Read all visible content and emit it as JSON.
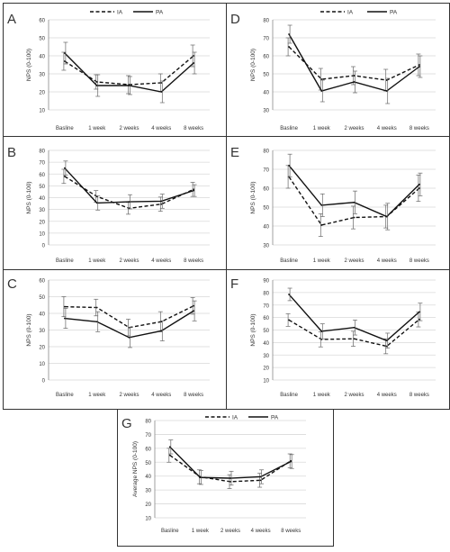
{
  "chart_data": [
    {
      "panel_letter": "A",
      "type": "line",
      "legend": [
        "IA",
        "PA"
      ],
      "ylabel": "NPS (0-100)",
      "categories": [
        "Basline",
        "1 week",
        "2 weeks",
        "4 weeks",
        "8 weeks"
      ],
      "yticks": [
        10,
        20,
        30,
        40,
        50,
        60
      ],
      "ylim": [
        10,
        60
      ],
      "series": [
        {
          "name": "IA",
          "style": "dashed",
          "values": [
            37,
            25.5,
            24,
            25,
            40
          ],
          "errors": [
            5,
            4,
            5,
            5,
            6
          ]
        },
        {
          "name": "PA",
          "style": "solid",
          "values": [
            41.5,
            23.5,
            23.5,
            20,
            36
          ],
          "errors": [
            6,
            6,
            5,
            6,
            6
          ]
        }
      ]
    },
    {
      "panel_letter": "D",
      "type": "line",
      "legend": [
        "IA",
        "PA"
      ],
      "ylabel": "NPS (0-100)",
      "categories": [
        "Basline",
        "1 week",
        "2 weeks",
        "4 weeks",
        "8 weeks"
      ],
      "yticks": [
        30,
        40,
        50,
        60,
        70,
        80
      ],
      "ylim": [
        30,
        80
      ],
      "series": [
        {
          "name": "IA",
          "style": "dashed",
          "values": [
            65,
            47,
            49,
            46.5,
            55
          ],
          "errors": [
            5,
            6,
            5,
            6,
            6
          ]
        },
        {
          "name": "PA",
          "style": "solid",
          "values": [
            72,
            40.5,
            45.5,
            40.5,
            54
          ],
          "errors": [
            5,
            6,
            6,
            7,
            6
          ]
        }
      ]
    },
    {
      "panel_letter": "B",
      "type": "line",
      "legend": [],
      "ylabel": "NPS (0-100)",
      "categories": [
        "Basline",
        "1 week",
        "2 weeks",
        "4 weeks",
        "8 weeks"
      ],
      "yticks": [
        0,
        10,
        20,
        30,
        40,
        50,
        60,
        70,
        80
      ],
      "ylim": [
        0,
        80
      ],
      "series": [
        {
          "name": "IA",
          "style": "dashed",
          "values": [
            58,
            41,
            31,
            34.5,
            47
          ],
          "errors": [
            6,
            5,
            5,
            6,
            6
          ]
        },
        {
          "name": "PA",
          "style": "solid",
          "values": [
            65,
            35.5,
            36.5,
            37,
            46
          ],
          "errors": [
            6,
            6,
            6,
            6,
            5
          ]
        }
      ]
    },
    {
      "panel_letter": "E",
      "type": "line",
      "legend": [],
      "ylabel": "NPS (0-100)",
      "categories": [
        "Basline",
        "1 week",
        "2 weeks",
        "4 weeks",
        "8 weeks"
      ],
      "yticks": [
        30,
        40,
        50,
        60,
        70,
        80
      ],
      "ylim": [
        30,
        80
      ],
      "series": [
        {
          "name": "IA",
          "style": "dashed",
          "values": [
            66,
            40.5,
            44.5,
            45,
            60
          ],
          "errors": [
            6,
            6,
            6,
            6,
            7
          ]
        },
        {
          "name": "PA",
          "style": "solid",
          "values": [
            72,
            51,
            52.5,
            45,
            62
          ],
          "errors": [
            6,
            6,
            6,
            7,
            6
          ]
        }
      ]
    },
    {
      "panel_letter": "C",
      "type": "line",
      "legend": [],
      "ylabel": "NPS (0-100)",
      "categories": [
        "Basline",
        "1 week",
        "2 weeks",
        "4 weeks",
        "8 weeks"
      ],
      "yticks": [
        0,
        10,
        20,
        30,
        40,
        50,
        60
      ],
      "ylim": [
        0,
        60
      ],
      "series": [
        {
          "name": "IA",
          "style": "dashed",
          "values": [
            44,
            43.5,
            31.5,
            35,
            44.5
          ],
          "errors": [
            6,
            5,
            5,
            6,
            5
          ]
        },
        {
          "name": "PA",
          "style": "solid",
          "values": [
            37,
            35,
            25.5,
            29.5,
            41.5
          ],
          "errors": [
            6,
            6,
            6,
            6,
            6
          ]
        }
      ]
    },
    {
      "panel_letter": "F",
      "type": "line",
      "legend": [],
      "ylabel": "NPS (0-100)",
      "categories": [
        "Basline",
        "1 week",
        "2 weeks",
        "4 weeks",
        "8 weeks"
      ],
      "yticks": [
        10,
        20,
        30,
        40,
        50,
        60,
        70,
        80,
        90
      ],
      "ylim": [
        10,
        90
      ],
      "series": [
        {
          "name": "IA",
          "style": "dashed",
          "values": [
            58,
            42.5,
            43,
            37,
            58.5
          ],
          "errors": [
            5,
            6,
            6,
            6,
            6
          ]
        },
        {
          "name": "PA",
          "style": "solid",
          "values": [
            78.5,
            49,
            52,
            41.5,
            64.5
          ],
          "errors": [
            5,
            6,
            6,
            6,
            7
          ]
        }
      ]
    },
    {
      "panel_letter": "G",
      "type": "line",
      "legend": [
        "IA",
        "PA"
      ],
      "ylabel": "Average NPS (0-100)",
      "categories": [
        "Basline",
        "1 week",
        "2 weeks",
        "4 weeks",
        "8 weeks"
      ],
      "yticks": [
        10,
        20,
        30,
        40,
        50,
        60,
        70,
        80
      ],
      "ylim": [
        10,
        80
      ],
      "series": [
        {
          "name": "IA",
          "style": "dashed",
          "values": [
            55,
            39.5,
            36,
            37,
            51
          ],
          "errors": [
            5,
            5,
            5,
            5,
            5
          ]
        },
        {
          "name": "PA",
          "style": "solid",
          "values": [
            61,
            39,
            38.5,
            39.5,
            50.5
          ],
          "errors": [
            5,
            5,
            5,
            5,
            5
          ]
        }
      ]
    }
  ]
}
